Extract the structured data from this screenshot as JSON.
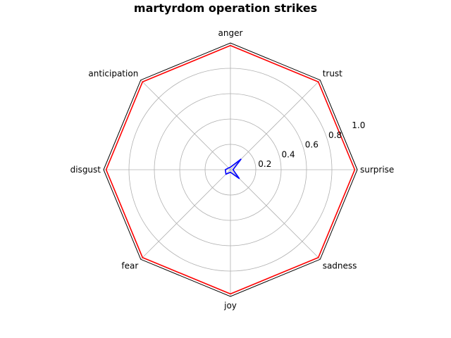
{
  "chart_data": {
    "type": "radar",
    "title": "martyrdom operation strikes",
    "categories": [
      "surprise",
      "trust",
      "anger",
      "anticipation",
      "disgust",
      "fear",
      "joy",
      "sadness"
    ],
    "radial_ticks": [
      "0.2",
      "0.4",
      "0.6",
      "0.8",
      "1.0"
    ],
    "rlim": [
      0,
      1.0
    ],
    "grid": true,
    "series": [
      {
        "color": "#ff0000",
        "values": [
          0.98,
          0.98,
          0.98,
          0.98,
          0.98,
          0.98,
          0.98,
          0.98
        ]
      },
      {
        "color": "#0000ff",
        "values": [
          0.02,
          0.12,
          0.02,
          0.02,
          0.04,
          0.05,
          0.02,
          0.1
        ]
      }
    ]
  }
}
